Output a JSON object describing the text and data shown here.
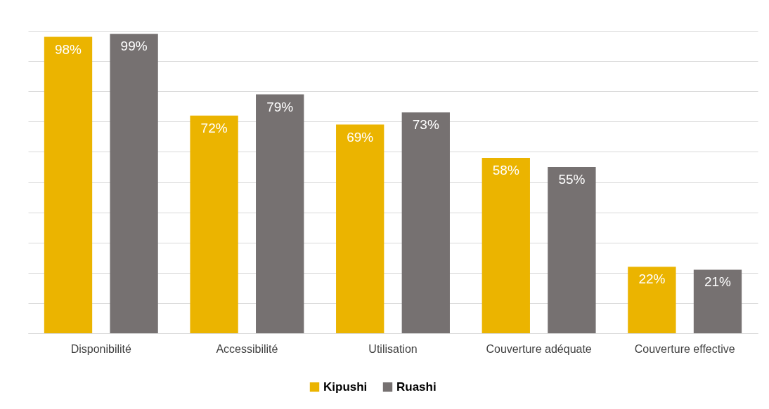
{
  "chart_data": {
    "type": "bar",
    "categories": [
      "Disponibilité",
      "Accessibilité",
      "Utilisation",
      "Couverture adéquate",
      "Couverture effective"
    ],
    "series": [
      {
        "name": "Kipushi",
        "color": "#ebb400",
        "values": [
          98,
          72,
          69,
          58,
          22
        ],
        "value_labels": [
          "98%",
          "72%",
          "69%",
          "58%",
          "22%"
        ]
      },
      {
        "name": "Ruashi",
        "color": "#767171",
        "values": [
          99,
          79,
          73,
          55,
          21
        ],
        "value_labels": [
          "99%",
          "79%",
          "73%",
          "55%",
          "21%"
        ]
      }
    ],
    "grid": "y",
    "legend": "bottom",
    "tick_labels": "x"
  }
}
